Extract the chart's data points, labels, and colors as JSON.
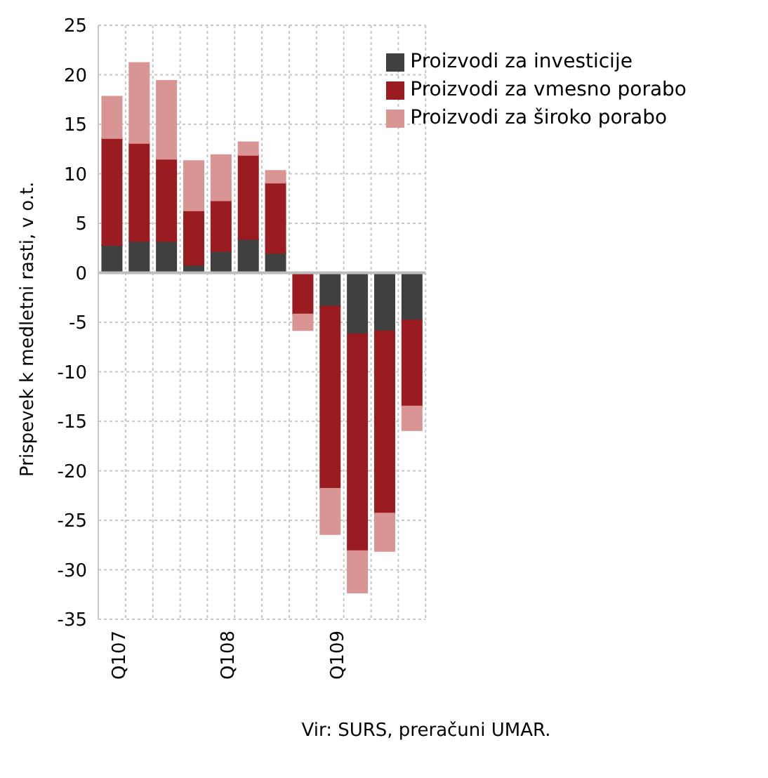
{
  "chart_data": {
    "type": "bar",
    "stacked": true,
    "ylabel": "Prispevek k medletni rasti, v o.t.",
    "annotations": [
      "Vir: SURS, preračuni UMAR."
    ],
    "categories": [
      "Q107",
      null,
      null,
      null,
      "Q108",
      null,
      null,
      null,
      "Q109",
      null,
      null,
      null
    ],
    "series": [
      {
        "name": "Proizvodi za investicije",
        "color": "#404040",
        "values": [
          2.8,
          3.2,
          3.2,
          0.8,
          2.2,
          3.4,
          2.0,
          0,
          -3.4,
          -6.2,
          -5.9,
          -4.8
        ]
      },
      {
        "name": "Proizvodi za vmesno porabo",
        "color": "#9b1c20",
        "values": [
          10.8,
          9.9,
          8.3,
          5.5,
          5.1,
          8.5,
          7.1,
          -4.2,
          -18.4,
          -21.9,
          -18.4,
          -8.7
        ]
      },
      {
        "name": "Proizvodi za široko porabo",
        "color": "#d99594",
        "values": [
          4.2,
          8.1,
          7.9,
          5.0,
          4.6,
          1.3,
          1.2,
          -1.6,
          -4.6,
          -4.2,
          -3.8,
          -2.4
        ]
      }
    ],
    "ylim": [
      -35,
      25
    ],
    "yticks": [
      -35,
      -30,
      -25,
      -20,
      -15,
      -10,
      -5,
      0,
      5,
      10,
      15,
      20,
      25
    ],
    "grid": true,
    "legend": "top right"
  }
}
